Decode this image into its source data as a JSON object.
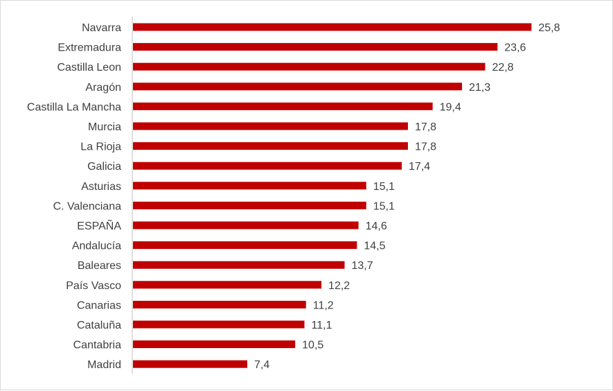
{
  "chart_data": {
    "type": "bar",
    "orientation": "horizontal",
    "title": "",
    "xlabel": "",
    "ylabel": "",
    "xlim": [
      0,
      26
    ],
    "grid": false,
    "legend": "none",
    "bar_color": "#c00000",
    "decimal_separator": ",",
    "categories": [
      "Navarra",
      "Extremadura",
      "Castilla Leon",
      "Aragón",
      "Castilla La Mancha",
      "Murcia",
      "La Rioja",
      "Galicia",
      "Asturias",
      "C. Valenciana",
      "ESPAÑA",
      "Andalucía",
      "Baleares",
      "País Vasco",
      "Canarias",
      "Cataluña",
      "Cantabria",
      "Madrid"
    ],
    "values": [
      25.8,
      23.6,
      22.8,
      21.3,
      19.4,
      17.8,
      17.8,
      17.4,
      15.1,
      15.1,
      14.6,
      14.5,
      13.7,
      12.2,
      11.2,
      11.1,
      10.5,
      7.4
    ],
    "value_labels": [
      "25,8",
      "23,6",
      "22,8",
      "21,3",
      "19,4",
      "17,8",
      "17,8",
      "17,4",
      "15,1",
      "15,1",
      "14,6",
      "14,5",
      "13,7",
      "12,2",
      "11,2",
      "11,1",
      "10,5",
      "7,4"
    ]
  }
}
